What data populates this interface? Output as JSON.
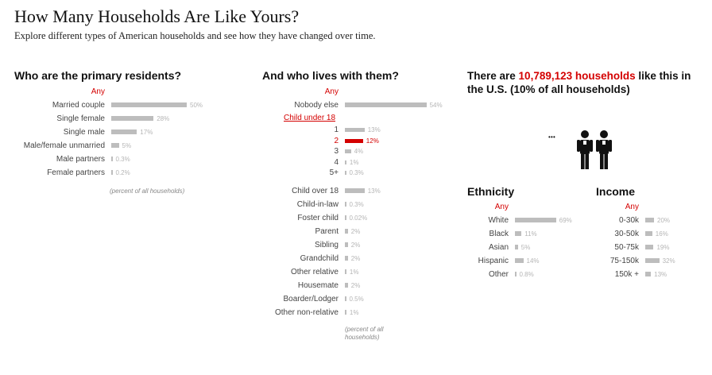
{
  "header": {
    "title": "How Many Households Are Like Yours?",
    "subtitle": "Explore different types of American households and see how they have changed over time."
  },
  "residents": {
    "heading": "Who are the primary residents?",
    "any_label": "Any",
    "note": "(percent of all households)",
    "items": [
      {
        "label": "Married couple",
        "value": 50,
        "pct": "50%"
      },
      {
        "label": "Single female",
        "value": 28,
        "pct": "28%"
      },
      {
        "label": "Single male",
        "value": 17,
        "pct": "17%"
      },
      {
        "label": "Male/female unmarried",
        "value": 5,
        "pct": "5%"
      },
      {
        "label": "Male partners",
        "value": 0.3,
        "pct": "0.3%"
      },
      {
        "label": "Female partners",
        "value": 0.2,
        "pct": "0.2%"
      }
    ]
  },
  "lives_with": {
    "heading": "And who lives with them?",
    "any_label": "Any",
    "nobody": {
      "label": "Nobody else",
      "value": 54,
      "pct": "54%"
    },
    "child_under_18_label": "Child under 18",
    "child_counts": [
      {
        "label": "1",
        "value": 13,
        "pct": "13%",
        "selected": false
      },
      {
        "label": "2",
        "value": 12,
        "pct": "12%",
        "selected": true
      },
      {
        "label": "3",
        "value": 4,
        "pct": "4%",
        "selected": false
      },
      {
        "label": "4",
        "value": 1,
        "pct": "1%",
        "selected": false
      },
      {
        "label": "5+",
        "value": 0.3,
        "pct": "0.3%",
        "selected": false
      }
    ],
    "others": [
      {
        "label": "Child over 18",
        "value": 13,
        "pct": "13%"
      },
      {
        "label": "Child-in-law",
        "value": 0.3,
        "pct": "0.3%"
      },
      {
        "label": "Foster child",
        "value": 0.02,
        "pct": "0.02%"
      },
      {
        "label": "Parent",
        "value": 2,
        "pct": "2%"
      },
      {
        "label": "Sibling",
        "value": 2,
        "pct": "2%"
      },
      {
        "label": "Grandchild",
        "value": 2,
        "pct": "2%"
      },
      {
        "label": "Other relative",
        "value": 1,
        "pct": "1%"
      },
      {
        "label": "Housemate",
        "value": 2,
        "pct": "2%"
      },
      {
        "label": "Boarder/Lodger",
        "value": 0.5,
        "pct": "0.5%"
      },
      {
        "label": "Other non-relative",
        "value": 1,
        "pct": "1%"
      }
    ],
    "note_line1": "(percent of all",
    "note_line2": "households)"
  },
  "result": {
    "prefix": "There are ",
    "count": "10,789,123 households",
    "suffix": " like this in the U.S. (10% of all households)",
    "dots": "• • •"
  },
  "ethnicity": {
    "heading": "Ethnicity",
    "any_label": "Any",
    "items": [
      {
        "label": "White",
        "value": 69,
        "pct": "69%"
      },
      {
        "label": "Black",
        "value": 11,
        "pct": "11%"
      },
      {
        "label": "Asian",
        "value": 5,
        "pct": "5%"
      },
      {
        "label": "Hispanic",
        "value": 14,
        "pct": "14%"
      },
      {
        "label": "Other",
        "value": 0.8,
        "pct": "0.8%"
      }
    ]
  },
  "income": {
    "heading": "Income",
    "any_label": "Any",
    "items": [
      {
        "label": "0-30k",
        "value": 20,
        "pct": "20%"
      },
      {
        "label": "30-50k",
        "value": 16,
        "pct": "16%"
      },
      {
        "label": "50-75k",
        "value": 19,
        "pct": "19%"
      },
      {
        "label": "75-150k",
        "value": 32,
        "pct": "32%"
      },
      {
        "label": "150k +",
        "value": 13,
        "pct": "13%"
      }
    ]
  },
  "colors": {
    "accent": "#d40000",
    "bar": "#bdbdbd",
    "pct_text": "#b5b5b5"
  }
}
